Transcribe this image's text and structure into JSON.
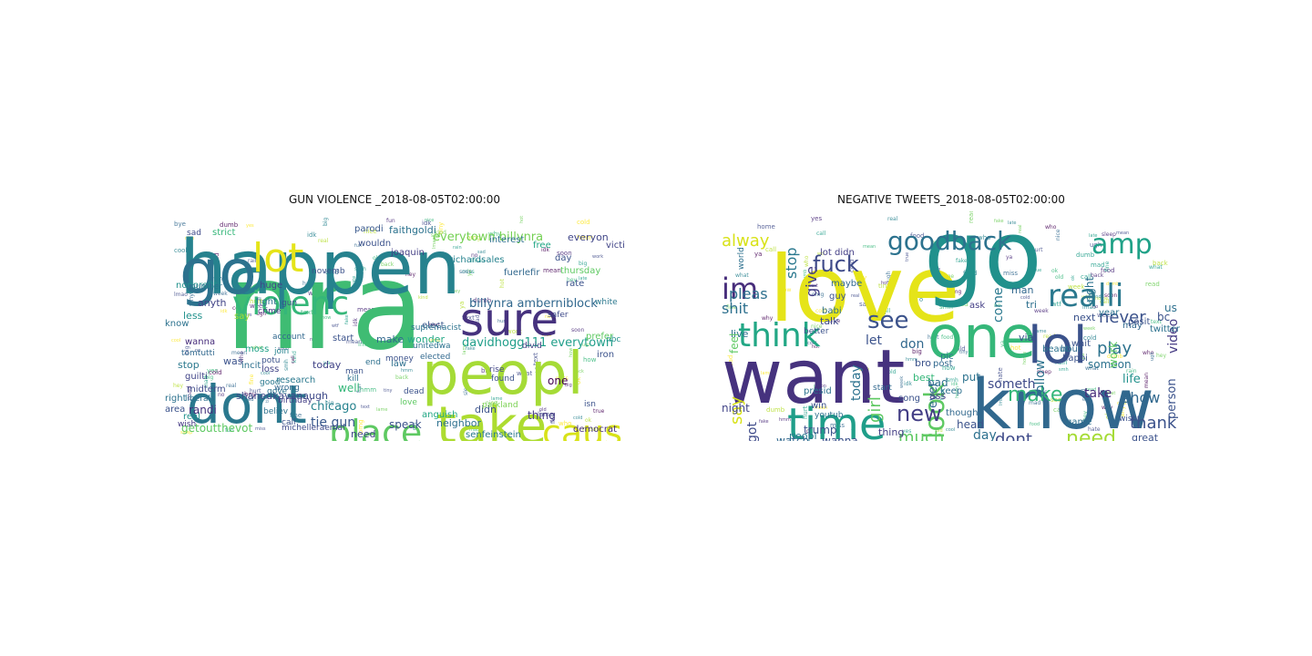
{
  "figures": [
    {
      "title": "GUN VIOLENCE _2018-08-05T02:00:00",
      "words": [
        {
          "text": "nra",
          "color": "#3fbc73"
        },
        {
          "text": "happen",
          "color": "#26828e"
        },
        {
          "text": "peopl",
          "color": "#a5db36"
        },
        {
          "text": "go",
          "color": "#2c728e"
        },
        {
          "text": "dont",
          "color": "#2a788e"
        },
        {
          "text": "sure",
          "color": "#46327e"
        },
        {
          "text": "take",
          "color": "#addc30"
        },
        {
          "text": "lot",
          "color": "#e5e419"
        },
        {
          "text": "violenc",
          "color": "#35b779"
        },
        {
          "text": "place",
          "color": "#5ec962"
        },
        {
          "text": "caus",
          "color": "#d8e219"
        },
        {
          "text": "everytown billynra",
          "color": "#75d054"
        },
        {
          "text": "billynra amberniblock",
          "color": "#31688e"
        },
        {
          "text": "davidhogg111 everytown",
          "color": "#1f9e89"
        },
        {
          "text": "everyon",
          "color": "#404688"
        },
        {
          "text": "anyth",
          "color": "#414487"
        },
        {
          "text": "less",
          "color": "#21918c"
        },
        {
          "text": "wanna",
          "color": "#472d7b"
        },
        {
          "text": "say",
          "color": "#a0da39"
        },
        {
          "text": "tomtutti",
          "color": "#31688e"
        },
        {
          "text": "moss",
          "color": "#1fa187"
        },
        {
          "text": "stop",
          "color": "#2a788e"
        },
        {
          "text": "was",
          "color": "#3b528b"
        },
        {
          "text": "chicago",
          "color": "#26828e"
        },
        {
          "text": "well",
          "color": "#35b779"
        },
        {
          "text": "today",
          "color": "#414487"
        },
        {
          "text": "make",
          "color": "#31688e"
        },
        {
          "text": "wonder",
          "color": "#22a785"
        },
        {
          "text": "tie gun",
          "color": "#38588c"
        },
        {
          "text": "speak",
          "color": "#3b528b"
        },
        {
          "text": "neighbor",
          "color": "#2d708e"
        },
        {
          "text": "need",
          "color": "#404688"
        },
        {
          "text": "thing",
          "color": "#443983"
        },
        {
          "text": "one",
          "color": "#440154"
        },
        {
          "text": "getoutthevot",
          "color": "#5ec962"
        },
        {
          "text": "shanedkavanaugh",
          "color": "#3e4a89"
        },
        {
          "text": "randi",
          "color": "#46327e"
        },
        {
          "text": "right",
          "color": "#2c728e"
        },
        {
          "text": "area",
          "color": "#3b528b"
        },
        {
          "text": "wish",
          "color": "#443983"
        },
        {
          "text": "real",
          "color": "#21918c"
        },
        {
          "text": "michelleraemal",
          "color": "#3e4a89"
        },
        {
          "text": "democrat",
          "color": "#472d7b"
        },
        {
          "text": "senfeinstein",
          "color": "#2a788e"
        },
        {
          "text": "didn",
          "color": "#3b528b"
        },
        {
          "text": "parkland",
          "color": "#7ad151"
        },
        {
          "text": "love",
          "color": "#5ec962"
        },
        {
          "text": "dead",
          "color": "#3b528b"
        },
        {
          "text": "kill",
          "color": "#2c728e"
        },
        {
          "text": "law",
          "color": "#2d708e"
        },
        {
          "text": "elect",
          "color": "#38588c"
        },
        {
          "text": "unitedwa",
          "color": "#2c728e"
        },
        {
          "text": "iron",
          "color": "#3b528b"
        },
        {
          "text": "nbc",
          "color": "#21918c"
        },
        {
          "text": "prefer",
          "color": "#5ec962"
        },
        {
          "text": "rise",
          "color": "#414487"
        },
        {
          "text": "found",
          "color": "#3b528b"
        },
        {
          "text": "interest",
          "color": "#2d708e"
        },
        {
          "text": "free",
          "color": "#22a785"
        },
        {
          "text": "victim",
          "color": "#414487"
        },
        {
          "text": "rate",
          "color": "#3b528b"
        },
        {
          "text": "white",
          "color": "#2a788e"
        },
        {
          "text": "safer",
          "color": "#3e4a89"
        },
        {
          "text": "richardsales",
          "color": "#26828e"
        },
        {
          "text": "fuerlefir",
          "color": "#31688e"
        },
        {
          "text": "joaquin",
          "color": "#433e85"
        },
        {
          "text": "faithgoldi",
          "color": "#2c728e"
        },
        {
          "text": "parodi",
          "color": "#38588c"
        },
        {
          "text": "wouldn",
          "color": "#3b528b"
        },
        {
          "text": "strict",
          "color": "#35b779"
        },
        {
          "text": "sad",
          "color": "#3e4a89"
        },
        {
          "text": "huge",
          "color": "#404688"
        },
        {
          "text": "fight",
          "color": "#2d708e"
        },
        {
          "text": "crime",
          "color": "#443983"
        },
        {
          "text": "nonprofit",
          "color": "#21918c"
        },
        {
          "text": "know",
          "color": "#2c728e"
        },
        {
          "text": "start",
          "color": "#3b528b"
        },
        {
          "text": "account",
          "color": "#31688e"
        },
        {
          "text": "join",
          "color": "#26828e"
        },
        {
          "text": "loss",
          "color": "#414487"
        },
        {
          "text": "potu",
          "color": "#3b528b"
        },
        {
          "text": "end",
          "color": "#2d708e"
        },
        {
          "text": "man",
          "color": "#3b528b"
        },
        {
          "text": "believ",
          "color": "#2c728e"
        },
        {
          "text": "wrong",
          "color": "#31688e"
        },
        {
          "text": "research",
          "color": "#2a788e"
        },
        {
          "text": "birthday",
          "color": "#433e85"
        },
        {
          "text": "call",
          "color": "#3b528b"
        },
        {
          "text": "gove",
          "color": "#2c728e"
        },
        {
          "text": "midterm",
          "color": "#3e4a89"
        },
        {
          "text": "guilti",
          "color": "#414487"
        },
        {
          "text": "liberals",
          "color": "#2d708e"
        },
        {
          "text": "isn",
          "color": "#3b528b"
        },
        {
          "text": "thursday",
          "color": "#5ec962"
        },
        {
          "text": "day",
          "color": "#3b528b"
        },
        {
          "text": "good",
          "color": "#2a788e"
        },
        {
          "text": "elected",
          "color": "#31688e"
        },
        {
          "text": "supremacist",
          "color": "#2c728e"
        },
        {
          "text": "money",
          "color": "#3b528b"
        },
        {
          "text": "divid",
          "color": "#433e85"
        },
        {
          "text": "incit",
          "color": "#2d708e"
        },
        {
          "text": "anguish",
          "color": "#22a785"
        },
        {
          "text": "novemb",
          "color": "#3b528b"
        },
        {
          "text": "number",
          "color": "#2c728e"
        },
        {
          "text": "gun",
          "color": "#3b528b"
        }
      ]
    },
    {
      "title": "NEGATIVE TWEETS_2018-08-05T02:00:00",
      "words": [
        {
          "text": "love",
          "color": "#e5e419"
        },
        {
          "text": "go",
          "color": "#21918c"
        },
        {
          "text": "want",
          "color": "#46327e"
        },
        {
          "text": "know",
          "color": "#31688e"
        },
        {
          "text": "one",
          "color": "#35b779"
        },
        {
          "text": "lol",
          "color": "#3b528b"
        },
        {
          "text": "look",
          "color": "#5ec962"
        },
        {
          "text": "time",
          "color": "#1f9e89"
        },
        {
          "text": "think",
          "color": "#22a785"
        },
        {
          "text": "realli",
          "color": "#2a788e"
        },
        {
          "text": "goodback",
          "color": "#2c728e"
        },
        {
          "text": "amp",
          "color": "#1fa187"
        },
        {
          "text": "im",
          "color": "#472d7b"
        },
        {
          "text": "fuck",
          "color": "#3e4a89"
        },
        {
          "text": "see",
          "color": "#3b528b"
        },
        {
          "text": "new",
          "color": "#433e85"
        },
        {
          "text": "make",
          "color": "#35b779"
        },
        {
          "text": "dont",
          "color": "#3e4a89"
        },
        {
          "text": "need",
          "color": "#a5db36"
        },
        {
          "text": "much",
          "color": "#5ec962"
        },
        {
          "text": "day",
          "color": "#2d708e"
        },
        {
          "text": "thank",
          "color": "#3b528b"
        },
        {
          "text": "show",
          "color": "#31688e"
        },
        {
          "text": "take",
          "color": "#472d7b"
        },
        {
          "text": "play",
          "color": "#2c728e"
        },
        {
          "text": "never",
          "color": "#3b528b"
        },
        {
          "text": "alway",
          "color": "#d8e219"
        },
        {
          "text": "pleas",
          "color": "#2d708e"
        },
        {
          "text": "stop",
          "color": "#2a788e"
        },
        {
          "text": "give",
          "color": "#433e85"
        },
        {
          "text": "shit",
          "color": "#2d708e"
        },
        {
          "text": "let",
          "color": "#3b528b"
        },
        {
          "text": "don",
          "color": "#31688e"
        },
        {
          "text": "girl",
          "color": "#5ec962"
        },
        {
          "text": "someth",
          "color": "#3e4a89"
        },
        {
          "text": "follow",
          "color": "#2c728e"
        },
        {
          "text": "video",
          "color": "#443983"
        },
        {
          "text": "person",
          "color": "#3b528b"
        },
        {
          "text": "life",
          "color": "#21918c"
        },
        {
          "text": "say",
          "color": "#d8e219"
        },
        {
          "text": "got",
          "color": "#3e4a89"
        },
        {
          "text": "night",
          "color": "#414487"
        },
        {
          "text": "today",
          "color": "#2c728e"
        },
        {
          "text": "trump",
          "color": "#3b528b"
        },
        {
          "text": "peopl",
          "color": "#2a788e"
        },
        {
          "text": "watch",
          "color": "#31688e"
        },
        {
          "text": "wanna",
          "color": "#3b528b"
        },
        {
          "text": "thing",
          "color": "#433e85"
        },
        {
          "text": "said",
          "color": "#a0da39"
        },
        {
          "text": "bad",
          "color": "#2d708e"
        },
        {
          "text": "ever",
          "color": "#31688e"
        },
        {
          "text": "head",
          "color": "#3b528b"
        },
        {
          "text": "put",
          "color": "#2c728e"
        },
        {
          "text": "talk",
          "color": "#3e4a89"
        },
        {
          "text": "live",
          "color": "#2d708e"
        },
        {
          "text": "feel",
          "color": "#5ec962"
        },
        {
          "text": "bro",
          "color": "#3b528b"
        },
        {
          "text": "post",
          "color": "#31688e"
        },
        {
          "text": "pic",
          "color": "#2c728e"
        },
        {
          "text": "ass",
          "color": "#433e85"
        },
        {
          "text": "best",
          "color": "#35b779"
        },
        {
          "text": "come",
          "color": "#2a788e"
        },
        {
          "text": "via",
          "color": "#3b528b"
        },
        {
          "text": "tri",
          "color": "#2d708e"
        },
        {
          "text": "man",
          "color": "#31688e"
        },
        {
          "text": "next",
          "color": "#3b528b"
        },
        {
          "text": "someon",
          "color": "#2c728e"
        },
        {
          "text": "work",
          "color": "#5ec962"
        },
        {
          "text": "us",
          "color": "#2d708e"
        },
        {
          "text": "bc",
          "color": "#3b528b"
        },
        {
          "text": "right",
          "color": "#2c728e"
        },
        {
          "text": "hour",
          "color": "#31688e"
        },
        {
          "text": "happi",
          "color": "#3b528b"
        },
        {
          "text": "game",
          "color": "#2d708e"
        },
        {
          "text": "great",
          "color": "#3b528b"
        },
        {
          "text": "thought",
          "color": "#31688e"
        },
        {
          "text": "beauti",
          "color": "#2c728e"
        },
        {
          "text": "wait",
          "color": "#3b528b"
        },
        {
          "text": "ask",
          "color": "#433e85"
        },
        {
          "text": "keep",
          "color": "#2d708e"
        },
        {
          "text": "song",
          "color": "#3b528b"
        },
        {
          "text": "start",
          "color": "#31688e"
        },
        {
          "text": "presid",
          "color": "#2c728e"
        },
        {
          "text": "win",
          "color": "#3b528b"
        },
        {
          "text": "babi",
          "color": "#2d708e"
        },
        {
          "text": "guy",
          "color": "#3b528b"
        },
        {
          "text": "maybe",
          "color": "#31688e"
        },
        {
          "text": "lot didn",
          "color": "#433e85"
        },
        {
          "text": "year",
          "color": "#2c728e"
        },
        {
          "text": "wish",
          "color": "#3b528b"
        },
        {
          "text": "youtub",
          "color": "#2d708e"
        },
        {
          "text": "better",
          "color": "#3b528b"
        },
        {
          "text": "may",
          "color": "#31688e"
        },
        {
          "text": "twitter",
          "color": "#2c728e"
        },
        {
          "text": "posit",
          "color": "#3b528b"
        },
        {
          "text": "world",
          "color": "#2d708e"
        }
      ]
    }
  ]
}
